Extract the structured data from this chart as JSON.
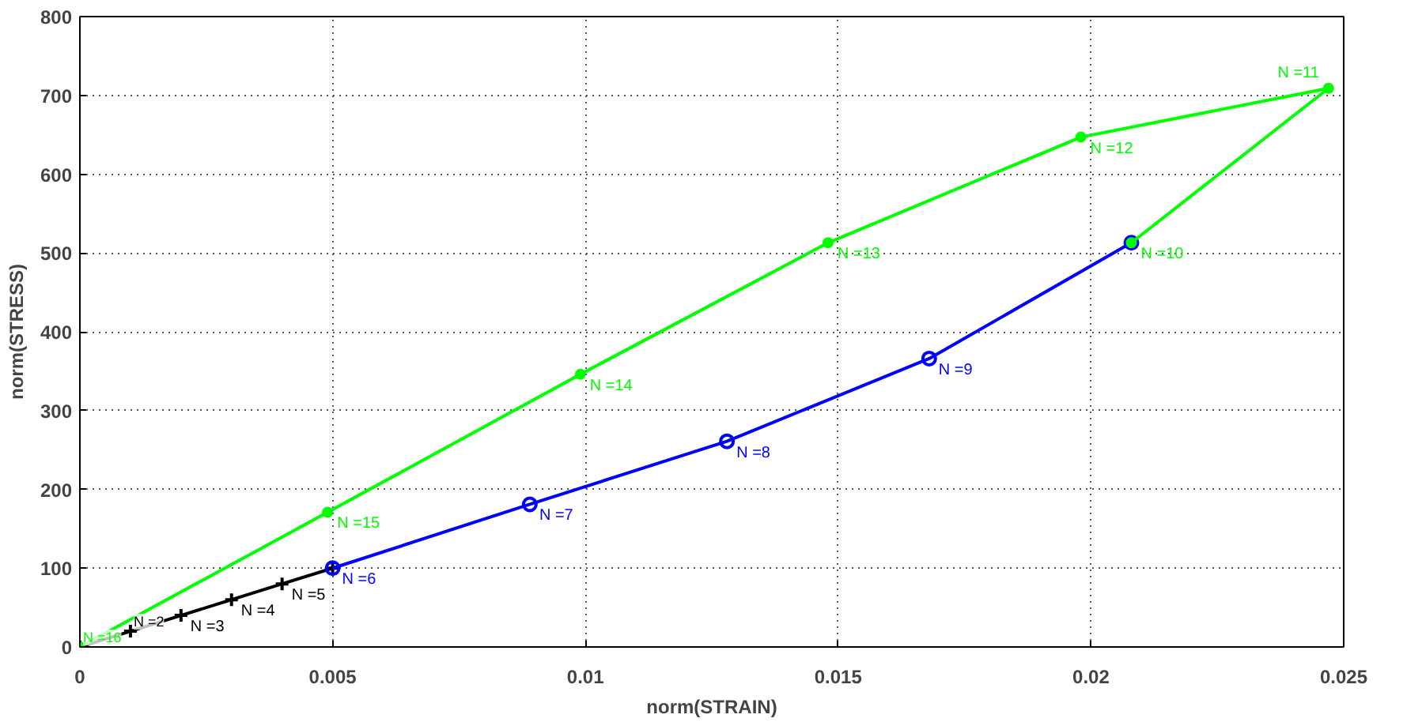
{
  "chart_data": {
    "type": "line",
    "xlabel": "norm(STRAIN)",
    "ylabel": "norm(STRESS)",
    "xlim": [
      0,
      0.025
    ],
    "ylim": [
      0,
      800
    ],
    "xticks": [
      0,
      0.005,
      0.01,
      0.015,
      0.02,
      0.025
    ],
    "yticks": [
      0,
      100,
      200,
      300,
      400,
      500,
      600,
      700,
      800
    ],
    "grid": true,
    "line_style": "solid",
    "series": [
      {
        "color": "#000000",
        "marker": "cross",
        "x": [
          0,
          0.001,
          0.002,
          0.003,
          0.004,
          0.005
        ],
        "values": [
          0,
          20,
          40,
          60,
          80,
          100
        ]
      },
      {
        "color": "#0000ff",
        "marker": "circle",
        "x": [
          0.005,
          0.0089,
          0.0128,
          0.0168,
          0.0208
        ],
        "values": [
          100,
          181,
          261,
          366,
          513
        ]
      },
      {
        "color": "#00ff00",
        "marker": "dot",
        "x": [
          0.0208,
          0.0247,
          0.0198,
          0.0148,
          0.0099,
          0.0049,
          0
        ],
        "values": [
          513,
          709,
          647,
          513,
          346,
          171,
          0
        ]
      }
    ],
    "annotations": [
      {
        "text": "N =2",
        "x": 0.001,
        "y": 20
      },
      {
        "text": "N =3",
        "x": 0.002,
        "y": 40
      },
      {
        "text": "N =4",
        "x": 0.003,
        "y": 60
      },
      {
        "text": "N =5",
        "x": 0.004,
        "y": 80
      },
      {
        "text": "N =6",
        "x": 0.005,
        "y": 100
      },
      {
        "text": "N =7",
        "x": 0.0089,
        "y": 181
      },
      {
        "text": "N =8",
        "x": 0.0128,
        "y": 261
      },
      {
        "text": "N =9",
        "x": 0.0168,
        "y": 366
      },
      {
        "text": "N =10",
        "x": 0.0208,
        "y": 513
      },
      {
        "text": "N =11",
        "x": 0.0247,
        "y": 709
      },
      {
        "text": "N =12",
        "x": 0.0198,
        "y": 647
      },
      {
        "text": "N =13",
        "x": 0.0148,
        "y": 513
      },
      {
        "text": "N =14",
        "x": 0.0099,
        "y": 346
      },
      {
        "text": "N =15",
        "x": 0.0049,
        "y": 171
      },
      {
        "text": "N =16",
        "x": 0,
        "y": 0
      }
    ]
  }
}
